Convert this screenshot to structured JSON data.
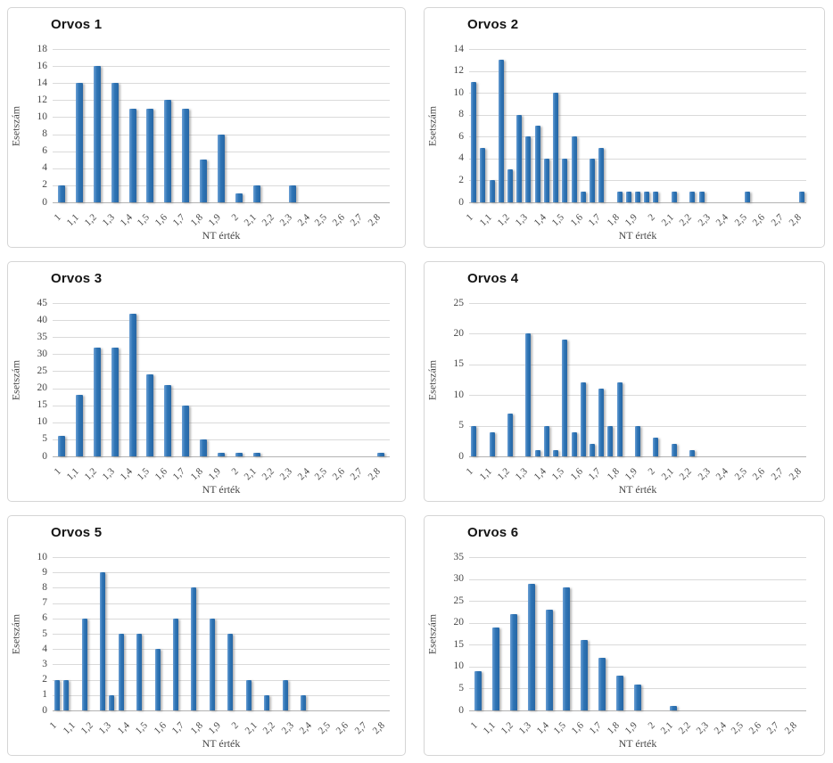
{
  "page": {
    "background": "#ffffff"
  },
  "style": {
    "bar_color": "#2e74b5",
    "bar_highlight": "#6b9fd4",
    "gridline_color": "#dadada",
    "axis_line_color": "#b3b3b3",
    "axis_text_color": "#474747",
    "title_color": "#151515",
    "panel_border_color": "#d5d5d5"
  },
  "shared": {
    "ylabel": "Esetszám",
    "xlabel": "NT érték",
    "xtick_labels": [
      "1",
      "1,1",
      "1,2",
      "1,3",
      "1,4",
      "1,5",
      "1,6",
      "1,7",
      "1,8",
      "1,9",
      "2",
      "2,1",
      "2,2",
      "2,3",
      "2,4",
      "2,5",
      "2,6",
      "2,7",
      "2,8"
    ]
  },
  "chart_data": [
    {
      "type": "bar",
      "title": "Orvos 1",
      "xlabel": "NT érték",
      "ylabel": "Esetszám",
      "ylim": [
        0,
        18
      ],
      "ytick_step": 2,
      "grid": true,
      "legend": "none",
      "x_start": 1.0,
      "bin_width": 0.1,
      "label_every": 1,
      "categories": [
        1.0,
        1.1,
        1.2,
        1.3,
        1.4,
        1.5,
        1.6,
        1.7,
        1.8,
        1.9,
        2.0,
        2.1,
        2.2,
        2.3,
        2.4,
        2.5,
        2.6,
        2.7,
        2.8
      ],
      "values": [
        2,
        14,
        16,
        14,
        11,
        11,
        12,
        11,
        5,
        8,
        1,
        2,
        0,
        2,
        0,
        0,
        0,
        0,
        0
      ]
    },
    {
      "type": "bar",
      "title": "Orvos 2",
      "xlabel": "NT érték",
      "ylabel": "Esetszám",
      "ylim": [
        0,
        14
      ],
      "ytick_step": 2,
      "grid": true,
      "legend": "none",
      "x_start": 1.0,
      "bin_width": 0.05,
      "label_every": 2,
      "categories": [
        1.0,
        1.05,
        1.1,
        1.15,
        1.2,
        1.25,
        1.3,
        1.35,
        1.4,
        1.45,
        1.5,
        1.55,
        1.6,
        1.65,
        1.7,
        1.75,
        1.8,
        1.85,
        1.9,
        1.95,
        2.0,
        2.05,
        2.1,
        2.15,
        2.2,
        2.25,
        2.3,
        2.35,
        2.4,
        2.45,
        2.5,
        2.55,
        2.6,
        2.65,
        2.7,
        2.75,
        2.8
      ],
      "values": [
        11,
        5,
        2,
        13,
        3,
        8,
        6,
        7,
        4,
        10,
        4,
        6,
        1,
        4,
        5,
        0,
        1,
        1,
        1,
        1,
        1,
        0,
        1,
        0,
        1,
        1,
        0,
        0,
        0,
        0,
        1,
        0,
        0,
        0,
        0,
        0,
        1
      ]
    },
    {
      "type": "bar",
      "title": "Orvos 3",
      "xlabel": "NT érték",
      "ylabel": "Esetszám",
      "ylim": [
        0,
        45
      ],
      "ytick_step": 5,
      "grid": true,
      "legend": "none",
      "x_start": 1.0,
      "bin_width": 0.1,
      "label_every": 1,
      "categories": [
        1.0,
        1.1,
        1.2,
        1.3,
        1.4,
        1.5,
        1.6,
        1.7,
        1.8,
        1.9,
        2.0,
        2.1,
        2.2,
        2.3,
        2.4,
        2.5,
        2.6,
        2.7,
        2.8
      ],
      "values": [
        6,
        18,
        32,
        32,
        42,
        24,
        21,
        15,
        5,
        1,
        1,
        1,
        0,
        0,
        0,
        0,
        0,
        0,
        1
      ]
    },
    {
      "type": "bar",
      "title": "Orvos 4",
      "xlabel": "NT érték",
      "ylabel": "Esetszám",
      "ylim": [
        0,
        25
      ],
      "ytick_step": 5,
      "grid": true,
      "legend": "none",
      "x_start": 1.0,
      "bin_width": 0.05,
      "label_every": 2,
      "categories": [
        1.0,
        1.05,
        1.1,
        1.15,
        1.2,
        1.25,
        1.3,
        1.35,
        1.4,
        1.45,
        1.5,
        1.55,
        1.6,
        1.65,
        1.7,
        1.75,
        1.8,
        1.85,
        1.9,
        1.95,
        2.0,
        2.05,
        2.1,
        2.15,
        2.2,
        2.25,
        2.3,
        2.35,
        2.4,
        2.45,
        2.5,
        2.55,
        2.6,
        2.65,
        2.7,
        2.75,
        2.8
      ],
      "values": [
        5,
        0,
        4,
        0,
        7,
        0,
        20,
        1,
        5,
        1,
        19,
        4,
        12,
        2,
        11,
        5,
        12,
        0,
        5,
        0,
        3,
        0,
        2,
        0,
        1,
        0,
        0,
        0,
        0,
        0,
        0,
        0,
        0,
        0,
        0,
        0,
        0
      ]
    },
    {
      "type": "bar",
      "title": "Orvos 5",
      "xlabel": "NT érték",
      "ylabel": "Esetszám",
      "ylim": [
        0,
        10
      ],
      "ytick_step": 1,
      "grid": true,
      "legend": "none",
      "x_start": 1.0,
      "bin_width": 0.05,
      "label_every": 2,
      "categories": [
        1.0,
        1.05,
        1.1,
        1.15,
        1.2,
        1.25,
        1.3,
        1.35,
        1.4,
        1.45,
        1.5,
        1.55,
        1.6,
        1.65,
        1.7,
        1.75,
        1.8,
        1.85,
        1.9,
        1.95,
        2.0,
        2.05,
        2.1,
        2.15,
        2.2,
        2.25,
        2.3,
        2.35,
        2.4,
        2.45,
        2.5,
        2.55,
        2.6,
        2.65,
        2.7,
        2.75,
        2.8
      ],
      "values": [
        2,
        2,
        0,
        6,
        0,
        9,
        1,
        5,
        0,
        5,
        0,
        4,
        0,
        6,
        0,
        8,
        0,
        6,
        0,
        5,
        0,
        2,
        0,
        1,
        0,
        2,
        0,
        1,
        0,
        0,
        0,
        0,
        0,
        0,
        0,
        0,
        0
      ]
    },
    {
      "type": "bar",
      "title": "Orvos 6",
      "xlabel": "NT érték",
      "ylabel": "Esetszám",
      "ylim": [
        0,
        35
      ],
      "ytick_step": 5,
      "grid": true,
      "legend": "none",
      "x_start": 1.0,
      "bin_width": 0.1,
      "label_every": 1,
      "categories": [
        1.0,
        1.1,
        1.2,
        1.3,
        1.4,
        1.5,
        1.6,
        1.7,
        1.8,
        1.9,
        2.0,
        2.1,
        2.2,
        2.3,
        2.4,
        2.5,
        2.6,
        2.7,
        2.8
      ],
      "values": [
        9,
        19,
        22,
        29,
        23,
        28,
        16,
        12,
        8,
        6,
        0,
        1,
        0,
        0,
        0,
        0,
        0,
        0,
        0
      ]
    }
  ]
}
